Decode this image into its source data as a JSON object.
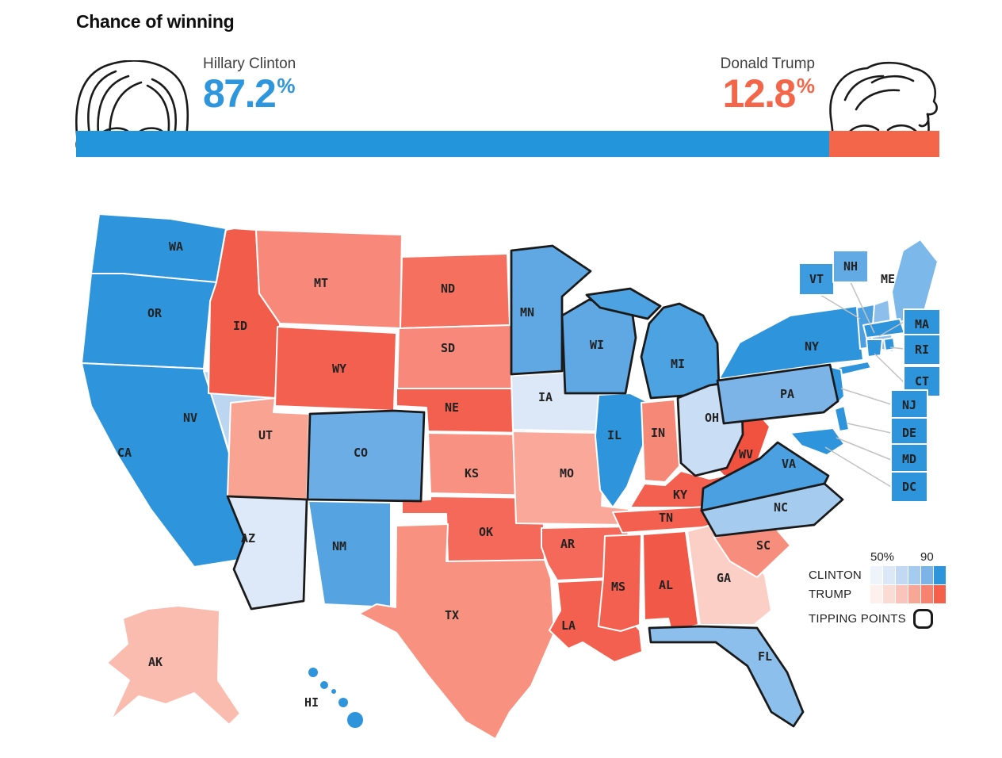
{
  "title": "Chance of winning",
  "candidates": {
    "clinton": {
      "name": "Hillary Clinton",
      "pct": "87.2",
      "sym": "%",
      "color": "#2e96dd"
    },
    "trump": {
      "name": "Donald Trump",
      "pct": "12.8",
      "sym": "%",
      "color": "#f4664a"
    }
  },
  "bar": {
    "clinton_pct": 87.2,
    "trump_pct": 12.8,
    "clinton_color": "#2295db",
    "trump_color": "#f4664a"
  },
  "legend": {
    "tick_left": "50%",
    "tick_right": "90",
    "clinton_label": "CLINTON",
    "trump_label": "TRUMP",
    "tipping_label": "TIPPING POINTS",
    "clinton_scale": [
      "#eff4fb",
      "#dce8f7",
      "#c3d9f3",
      "#a5cbee",
      "#7db4e8",
      "#2e94dc"
    ],
    "trump_scale": [
      "#fdf0ed",
      "#fbdcd5",
      "#fac4ba",
      "#f8a695",
      "#f6826f",
      "#f4604a"
    ]
  },
  "map": {
    "border_color": "#ffffff",
    "tipping_outline_color": "#1a1a1a",
    "tipping_points": [
      "AZ",
      "CO",
      "MN",
      "WI",
      "MI",
      "OH",
      "PA",
      "VA",
      "NC",
      "FL"
    ],
    "states": {
      "WA": {
        "abbr": "WA",
        "color": "#2e94dc"
      },
      "OR": {
        "abbr": "OR",
        "color": "#2e94dc"
      },
      "CA": {
        "abbr": "CA",
        "color": "#2e94dc"
      },
      "NV": {
        "abbr": "NV",
        "color": "#bcd6f2"
      },
      "ID": {
        "abbr": "ID",
        "color": "#f25c4b"
      },
      "MT": {
        "abbr": "MT",
        "color": "#f8897a"
      },
      "WY": {
        "abbr": "WY",
        "color": "#f4604f"
      },
      "UT": {
        "abbr": "UT",
        "color": "#f9a393"
      },
      "CO": {
        "abbr": "CO",
        "color": "#6cade6"
      },
      "AZ": {
        "abbr": "AZ",
        "color": "#dde9f8"
      },
      "NM": {
        "abbr": "NM",
        "color": "#55a3e1"
      },
      "ND": {
        "abbr": "ND",
        "color": "#f5705f"
      },
      "SD": {
        "abbr": "SD",
        "color": "#f8897a"
      },
      "NE": {
        "abbr": "NE",
        "color": "#f4604f"
      },
      "KS": {
        "abbr": "KS",
        "color": "#f89181"
      },
      "OK": {
        "abbr": "OK",
        "color": "#f4695a"
      },
      "TX": {
        "abbr": "TX",
        "color": "#f8917f"
      },
      "MN": {
        "abbr": "MN",
        "color": "#5fa8e3"
      },
      "IA": {
        "abbr": "IA",
        "color": "#dce8f7"
      },
      "MO": {
        "abbr": "MO",
        "color": "#f9a89a"
      },
      "AR": {
        "abbr": "AR",
        "color": "#f4695a"
      },
      "LA": {
        "abbr": "LA",
        "color": "#f4604f"
      },
      "WI": {
        "abbr": "WI",
        "color": "#5fa8e3"
      },
      "IL": {
        "abbr": "IL",
        "color": "#2e94dc"
      },
      "MI": {
        "abbr": "MI",
        "color": "#4da2e2"
      },
      "IN": {
        "abbr": "IN",
        "color": "#f68877"
      },
      "OH": {
        "abbr": "OH",
        "color": "#c9ddf4"
      },
      "KY": {
        "abbr": "KY",
        "color": "#f4604f"
      },
      "TN": {
        "abbr": "TN",
        "color": "#f4604f"
      },
      "MS": {
        "abbr": "MS",
        "color": "#f4604f"
      },
      "AL": {
        "abbr": "AL",
        "color": "#f25847"
      },
      "GA": {
        "abbr": "GA",
        "color": "#fbcfc6"
      },
      "FL": {
        "abbr": "FL",
        "color": "#8cbfeb"
      },
      "SC": {
        "abbr": "SC",
        "color": "#f68d7d"
      },
      "NC": {
        "abbr": "NC",
        "color": "#a5cbee"
      },
      "VA": {
        "abbr": "VA",
        "color": "#4aa0e0"
      },
      "WV": {
        "abbr": "WV",
        "color": "#f1523f"
      },
      "PA": {
        "abbr": "PA",
        "color": "#7db4e8"
      },
      "NY": {
        "abbr": "NY",
        "color": "#2e94dc"
      },
      "ME": {
        "abbr": "ME",
        "color": "#7cb9ea"
      },
      "VT": {
        "abbr": "VT",
        "color": "#4aa0e0",
        "box_color": "#3d9be0"
      },
      "NH": {
        "abbr": "NH",
        "color": "#8cbfeb",
        "box_color": "#62aae4"
      },
      "MA": {
        "abbr": "MA",
        "color": "#2e94dc",
        "box_color": "#2e94dc"
      },
      "RI": {
        "abbr": "RI",
        "color": "#2e94dc",
        "box_color": "#2e94dc"
      },
      "CT": {
        "abbr": "CT",
        "color": "#2e94dc",
        "box_color": "#2e94dc"
      },
      "NJ": {
        "abbr": "NJ",
        "color": "#2e94dc",
        "box_color": "#2e94dc"
      },
      "DE": {
        "abbr": "DE",
        "color": "#2e94dc",
        "box_color": "#2e94dc"
      },
      "MD": {
        "abbr": "MD",
        "color": "#2e94dc",
        "box_color": "#2e94dc"
      },
      "DC": {
        "abbr": "DC",
        "color": "#2e94dc",
        "box_color": "#2e94dc"
      },
      "AK": {
        "abbr": "AK",
        "color": "#fbbcb0"
      },
      "HI": {
        "abbr": "HI",
        "color": "#2e94dc"
      }
    }
  }
}
